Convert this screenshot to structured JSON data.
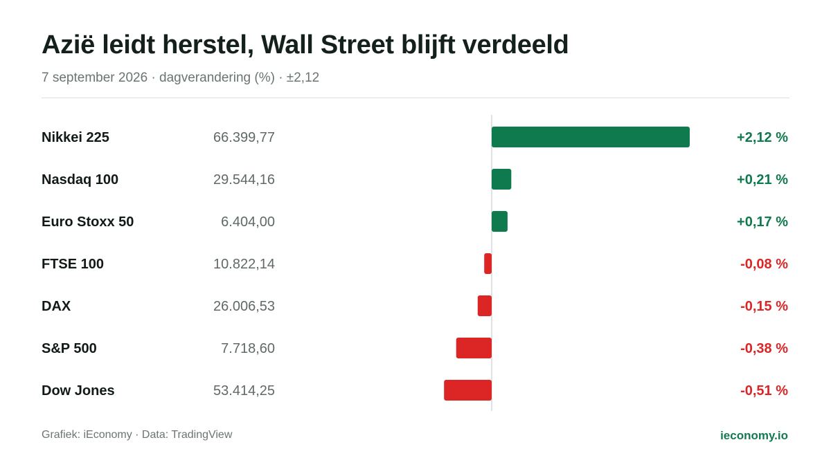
{
  "header": {
    "title": "Azië leidt herstel, Wall Street blijft verdeeld",
    "subtitle": "7 september 2026 · dagverandering (%) · ±2,12"
  },
  "footer": {
    "source": "Grafiek: iEconomy · Data: TradingView",
    "brand": "ieconomy.io"
  },
  "colors": {
    "positive": "#0f7a4e",
    "negative": "#dc2626",
    "brand": "#137a51"
  },
  "chart_data": {
    "type": "bar",
    "orientation": "horizontal",
    "title": "Azië leidt herstel, Wall Street blijft verdeeld",
    "subtitle": "7 september 2026 · dagverandering (%) · ±2,12",
    "unit": "%",
    "xlim": [
      -2.12,
      2.12
    ],
    "grid": false,
    "categories": [
      "Nikkei 225",
      "Nasdaq 100",
      "Euro Stoxx 50",
      "FTSE 100",
      "DAX",
      "S&P 500",
      "Dow Jones"
    ],
    "levels": [
      "66.399,77",
      "29.544,16",
      "6.404,00",
      "10.822,14",
      "26.006,53",
      "7.718,60",
      "53.414,25"
    ],
    "values": [
      2.12,
      0.21,
      0.17,
      -0.08,
      -0.15,
      -0.38,
      -0.51
    ],
    "value_labels": [
      "+2,12 %",
      "+0,21 %",
      "+0,17 %",
      "-0,08 %",
      "-0,15 %",
      "-0,38 %",
      "-0,51 %"
    ]
  }
}
